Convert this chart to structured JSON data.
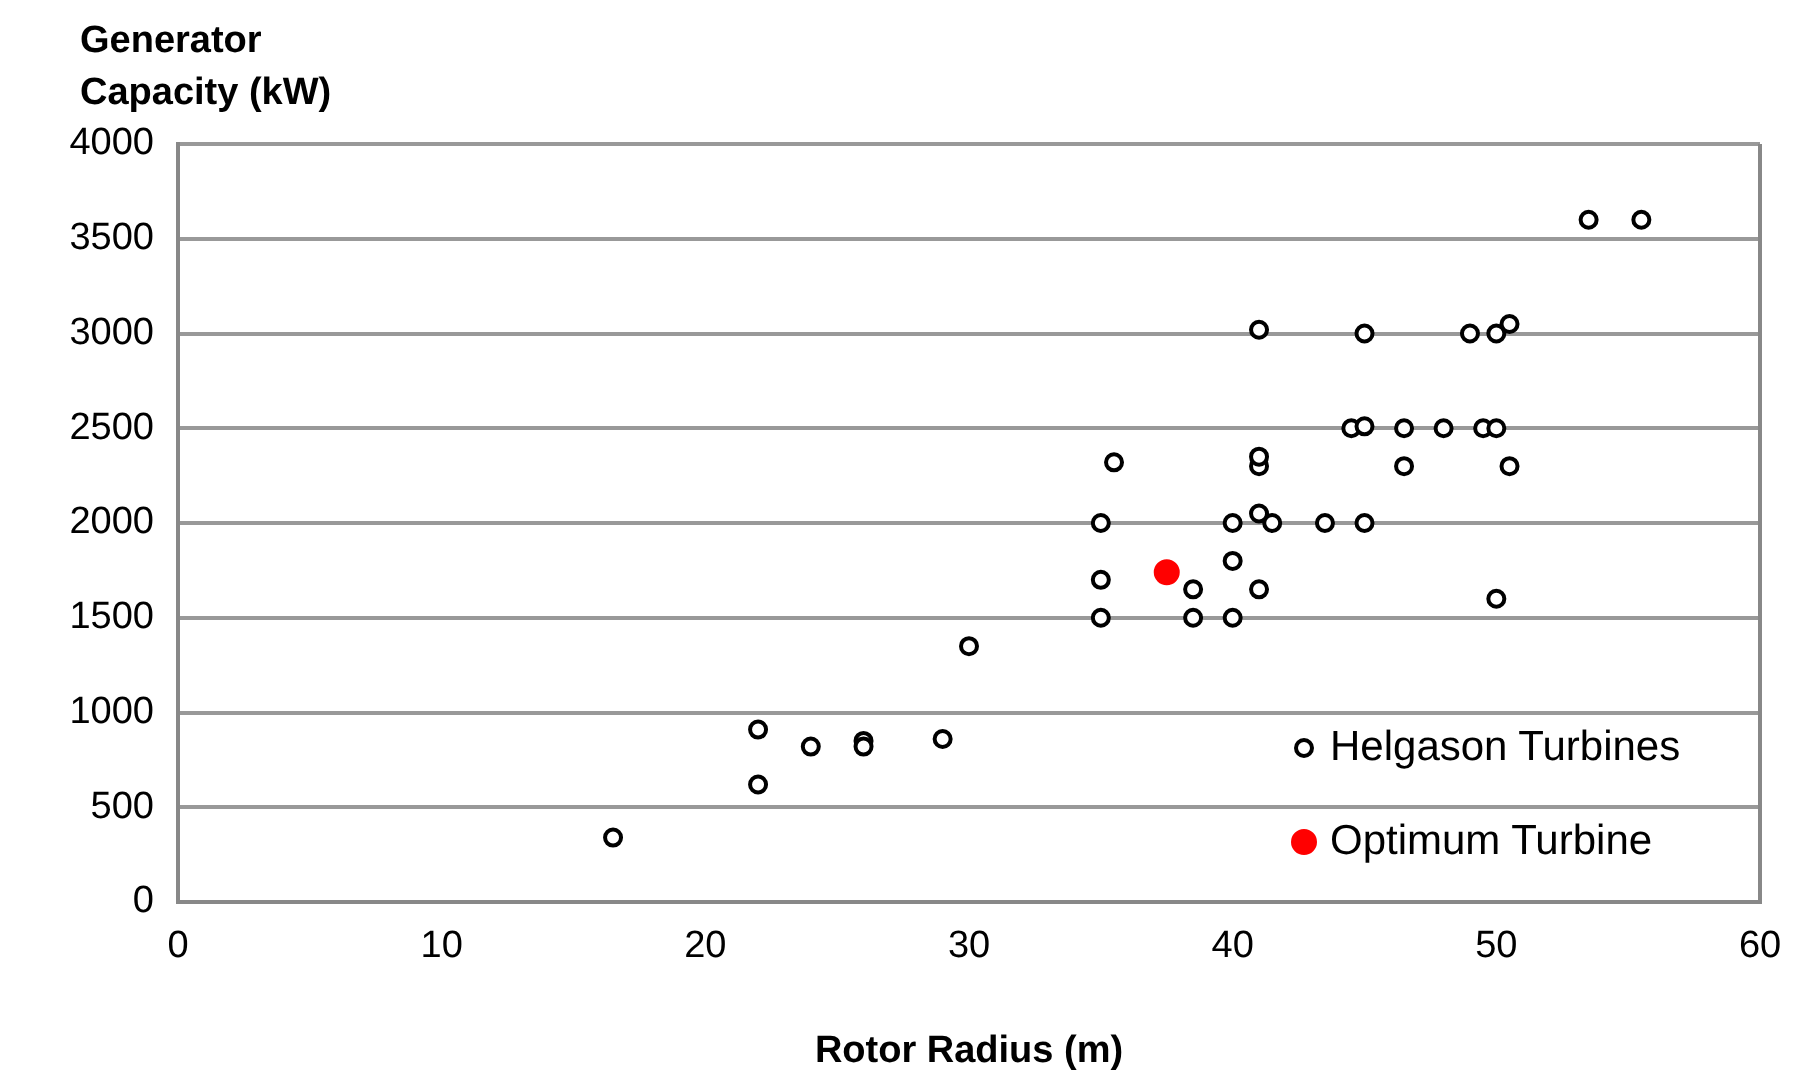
{
  "chart_data": {
    "type": "scatter",
    "xlabel": "Rotor Radius (m)",
    "ylabel": "Generator Capacity (kW)",
    "xlim": [
      0,
      60
    ],
    "xticks": [
      0,
      10,
      20,
      30,
      40,
      50,
      60
    ],
    "ylim": [
      0,
      4000
    ],
    "yticks": [
      0,
      500,
      1000,
      1500,
      2000,
      2500,
      3000,
      3500,
      4000
    ],
    "grid": "y",
    "legend": "bottom right",
    "marker": "circle",
    "series": [
      {
        "name": "Helgason Turbines",
        "color": "#000000",
        "x": [
          16.5,
          22,
          22,
          24,
          26,
          26,
          29,
          30,
          35,
          35,
          35,
          35.5,
          38.5,
          38.5,
          40,
          40,
          40,
          41,
          41,
          41,
          41,
          41,
          41.5,
          43.5,
          45,
          44.5,
          45,
          45,
          46.5,
          46.5,
          48,
          49.5,
          50,
          49,
          50,
          50.5,
          50,
          50.5,
          53.5,
          55.5
        ],
        "values": [
          340,
          910,
          620,
          820,
          850,
          820,
          860,
          1350,
          2000,
          1700,
          1500,
          2320,
          1500,
          1650,
          1500,
          1800,
          2000,
          2300,
          2350,
          3020,
          2050,
          1650,
          2000,
          2000,
          2000,
          2500,
          2510,
          3000,
          2500,
          2300,
          2500,
          2500,
          2500,
          3000,
          3000,
          3050,
          1600,
          2300,
          3600,
          3600
        ]
      },
      {
        "name": "Optimum Turbine",
        "color": "#ff0000",
        "x": [
          37.5
        ],
        "values": [
          1740
        ]
      }
    ]
  }
}
